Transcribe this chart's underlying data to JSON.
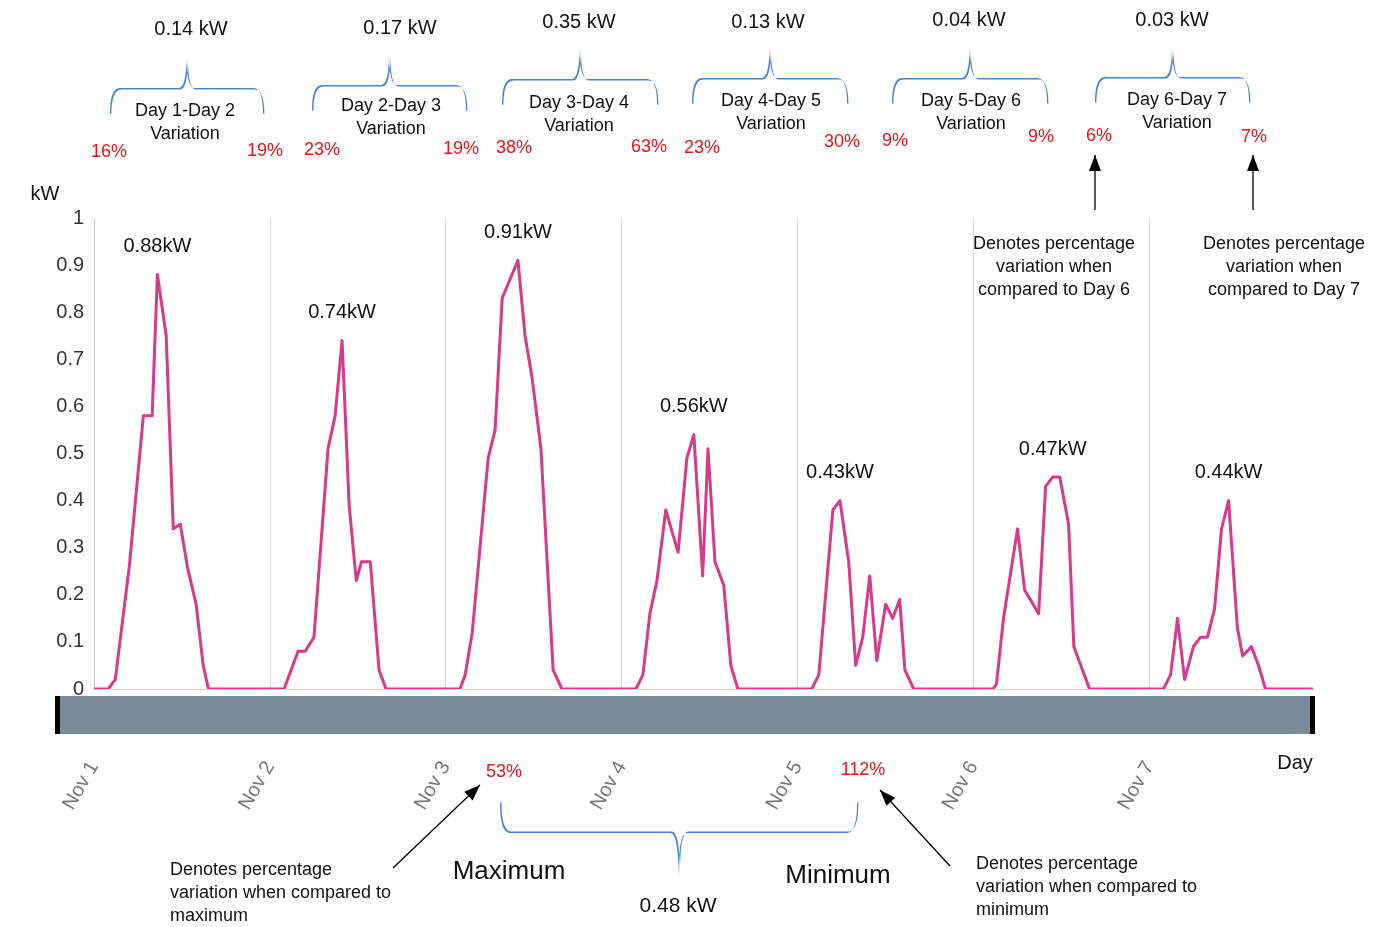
{
  "chart_data": {
    "type": "line",
    "xlabel": "Day",
    "ylabel": "kW",
    "x": [
      "--11-01T00:00",
      "--11-01T01:55",
      "--11-01T02:53",
      "--11-01T04:48",
      "--11-01T06:43",
      "--11-01T07:55",
      "--11-01T08:38",
      "--11-01T09:50",
      "--11-01T10:48",
      "--11-01T11:46",
      "--11-01T12:43",
      "--11-01T13:55",
      "--11-01T14:53",
      "--11-01T15:36",
      "--11-02T01:55",
      "--11-02T03:50",
      "--11-02T04:48",
      "--11-02T06:00",
      "--11-02T07:55",
      "--11-02T08:53",
      "--11-02T09:50",
      "--11-02T10:48",
      "--11-02T11:46",
      "--11-02T12:29",
      "--11-02T13:41",
      "--11-02T14:53",
      "--11-02T15:50",
      "--11-03T01:55",
      "--11-03T02:38",
      "--11-03T03:36",
      "--11-03T05:46",
      "--11-03T06:43",
      "--11-03T07:41",
      "--11-03T09:50",
      "--11-03T10:48",
      "--11-03T11:46",
      "--11-03T12:58",
      "--11-03T14:38",
      "--11-03T15:50",
      "--11-04T01:55",
      "--11-04T02:53",
      "--11-04T03:50",
      "--11-04T04:48",
      "--11-04T06:00",
      "--11-04T07:41",
      "--11-04T08:53",
      "--11-04T09:50",
      "--11-04T11:02",
      "--11-04T11:46",
      "--11-04T12:43",
      "--11-04T13:55",
      "--11-04T14:53",
      "--11-04T15:50",
      "--11-05T01:55",
      "--11-05T02:53",
      "--11-05T04:48",
      "--11-05T05:46",
      "--11-05T06:58",
      "--11-05T07:55",
      "--11-05T08:53",
      "--11-05T09:50",
      "--11-05T10:48",
      "--11-05T12:00",
      "--11-05T12:58",
      "--11-05T13:55",
      "--11-05T14:38",
      "--11-05T15:50",
      "--11-06T02:38",
      "--11-06T03:07",
      "--11-06T04:05",
      "--11-06T06:00",
      "--11-06T06:58",
      "--11-06T08:53",
      "--11-06T09:50",
      "--11-06T10:48",
      "--11-06T11:46",
      "--11-06T12:58",
      "--11-06T13:41",
      "--11-06T14:38",
      "--11-06T15:50",
      "--11-07T01:55",
      "--11-07T02:53",
      "--11-07T03:50",
      "--11-07T04:48",
      "--11-07T06:00",
      "--11-07T06:58",
      "--11-07T07:55",
      "--11-07T08:53",
      "--11-07T09:50",
      "--11-07T10:48",
      "--11-07T12:00",
      "--11-07T12:43",
      "--11-07T13:55",
      "--11-07T14:53",
      "--11-07T15:50",
      "--11-07T22:19"
    ],
    "series": [
      {
        "color": "#d63a8a",
        "values": [
          0,
          0,
          0.02,
          0.26,
          0.58,
          0.58,
          0.88,
          0.75,
          0.34,
          0.35,
          0.26,
          0.18,
          0.05,
          0,
          0,
          0.08,
          0.08,
          0.11,
          0.51,
          0.58,
          0.74,
          0.39,
          0.23,
          0.27,
          0.27,
          0.04,
          0,
          0,
          0.03,
          0.12,
          0.49,
          0.55,
          0.83,
          0.91,
          0.75,
          0.66,
          0.51,
          0.04,
          0,
          0,
          0.03,
          0.16,
          0.23,
          0.38,
          0.29,
          0.49,
          0.54,
          0.24,
          0.51,
          0.27,
          0.22,
          0.05,
          0,
          0,
          0.03,
          0.38,
          0.4,
          0.27,
          0.05,
          0.11,
          0.24,
          0.06,
          0.18,
          0.15,
          0.19,
          0.04,
          0,
          0,
          0.01,
          0.15,
          0.34,
          0.21,
          0.16,
          0.43,
          0.45,
          0.45,
          0.35,
          0.09,
          0.05,
          0,
          0,
          0.03,
          0.15,
          0.02,
          0.09,
          0.11,
          0.11,
          0.17,
          0.34,
          0.4,
          0.13,
          0.07,
          0.09,
          0.05,
          0,
          0
        ]
      }
    ],
    "xlim": [
      "--11-01T00:00",
      "--11-07T22:19"
    ],
    "xticks": [
      {
        "value": "--11-01",
        "label": "Nov 1"
      },
      {
        "value": "--11-02",
        "label": "Nov 2"
      },
      {
        "value": "--11-03",
        "label": "Nov 3"
      },
      {
        "value": "--11-04",
        "label": "Nov 4"
      },
      {
        "value": "--11-05",
        "label": "Nov 5"
      },
      {
        "value": "--11-06",
        "label": "Nov 6"
      },
      {
        "value": "--11-07",
        "label": "Nov 7"
      }
    ],
    "ylim": [
      0,
      1
    ],
    "yticks": [
      0,
      0.1,
      0.2,
      0.3,
      0.4,
      0.5,
      0.6,
      0.7,
      0.8,
      0.9,
      1
    ],
    "grid": "x",
    "legend": false,
    "marker": "none",
    "line_style": "solid",
    "annotations": [
      {
        "text": "0.88kW",
        "x": "--11-01T08:38",
        "y": 0.88
      },
      {
        "text": "0.74kW",
        "x": "--11-02T09:50",
        "y": 0.74
      },
      {
        "text": "0.91kW",
        "x": "--11-03T09:50",
        "y": 0.91
      },
      {
        "text": "0.56kW",
        "x": "--11-04T09:50",
        "y": 0.54
      },
      {
        "text": "0.43kW",
        "x": "--11-05T05:46",
        "y": 0.4
      },
      {
        "text": "0.47kW",
        "x": "--11-06T10:48",
        "y": 0.45
      },
      {
        "text": "0.44kW",
        "x": "--11-07T10:48",
        "y": 0.4
      },
      "0.14 kW",
      "Day 1-Day 2 Variation",
      "16%",
      "19%",
      "0.17 kW",
      "Day 2-Day 3 Variation",
      "23%",
      "19%",
      "0.35 kW",
      "Day 3-Day 4 Variation",
      "38%",
      "63%",
      "0.13 kW",
      "Day 4-Day 5 Variation",
      "23%",
      "30%",
      "0.04 kW",
      "Day 5-Day 6 Variation",
      "9%",
      "9%",
      "0.03 kW",
      "Day 6-Day 7 Variation",
      "6%",
      "7%",
      "Denotes percentage variation when compared to Day 6",
      "Denotes percentage variation when compared to Day 7",
      "53%",
      "112%",
      "Maximum",
      "Minimum",
      "0.48 kW",
      "Denotes percentage variation when compared to maximum",
      "Denotes percentage variation when compared to minimum"
    ]
  }
}
